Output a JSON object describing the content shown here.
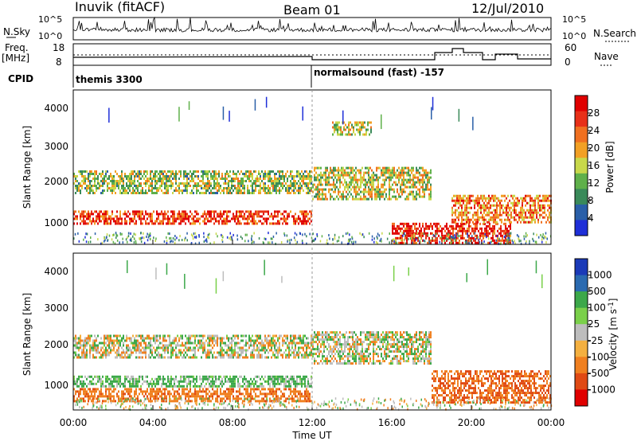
{
  "header": {
    "station": "Inuvik (fitACF)",
    "beam": "Beam 01",
    "date": "12/Jul/2010"
  },
  "left_labels": {
    "nsky": "N.Sky",
    "freq": "Freq.",
    "freq_unit": "[MHz]",
    "cpid": "CPID"
  },
  "right_labels": {
    "nsearch": "N.Search",
    "nave": "Nave"
  },
  "cpid_segments": [
    "themis 3300",
    "normalsound (fast) -157"
  ],
  "nsky_axis": {
    "top": "10^5",
    "bottom": "10^0"
  },
  "freq_axis": {
    "left_ticks": [
      "18",
      "8"
    ],
    "right_ticks": [
      "60",
      "0"
    ]
  },
  "colors": {
    "power": [
      "#1f2fd8",
      "#2a5fa8",
      "#3a8a5a",
      "#5fb04a",
      "#c8d84a",
      "#f2a024",
      "#f07020",
      "#e83018",
      "#e00000"
    ],
    "velocity_neg": "#e03a1a",
    "velocity_pos": "#1a3ab8",
    "ground": "#bdbdbd"
  },
  "chart_data": [
    {
      "type": "heatmap",
      "title": "Power",
      "xlabel": "Time UT",
      "ylabel": "Slant Range [km]",
      "x_ticks": [
        "00:00",
        "04:00",
        "08:00",
        "12:00",
        "16:00",
        "20:00",
        "00:00"
      ],
      "y_ticks": [
        "1000",
        "2000",
        "3000",
        "4000"
      ],
      "xlim": [
        "00:00",
        "24:00"
      ],
      "ylim": [
        180,
        4600
      ],
      "colorbar": {
        "label": "Power [dB]",
        "ticks": [
          "28",
          "24",
          "20",
          "16",
          "12",
          "8",
          "4"
        ]
      },
      "bands": [
        {
          "x": [
            0,
            12
          ],
          "y": [
            750,
            1150
          ],
          "level": 0.85
        },
        {
          "x": [
            0,
            12
          ],
          "y": [
            1650,
            2300
          ],
          "level": 0.45
        },
        {
          "x": [
            12,
            18
          ],
          "y": [
            1500,
            2400
          ],
          "level": 0.5
        },
        {
          "x": [
            16,
            22
          ],
          "y": [
            250,
            800
          ],
          "level": 0.9
        },
        {
          "x": [
            19,
            24
          ],
          "y": [
            800,
            1600
          ],
          "level": 0.7
        },
        {
          "x": [
            13,
            15
          ],
          "y": [
            3300,
            3700
          ],
          "level": 0.5
        }
      ]
    },
    {
      "type": "heatmap",
      "title": "Velocity",
      "xlabel": "Time UT",
      "ylabel": "Slant Range [km]",
      "x_ticks": [
        "00:00",
        "04:00",
        "08:00",
        "12:00",
        "16:00",
        "20:00",
        "00:00"
      ],
      "y_ticks": [
        "1000",
        "2000",
        "3000",
        "4000"
      ],
      "xlim": [
        "00:00",
        "24:00"
      ],
      "ylim": [
        180,
        4600
      ],
      "colorbar": {
        "label": "Velocity [m s^-1]",
        "ticks": [
          "1000",
          "500",
          "100",
          "25",
          "-25",
          "-100",
          "-500",
          "-1000"
        ]
      },
      "bands": [
        {
          "x": [
            0,
            12
          ],
          "y": [
            1650,
            2300
          ],
          "value": 0
        },
        {
          "x": [
            0,
            12
          ],
          "y": [
            850,
            1150
          ],
          "value": 150
        },
        {
          "x": [
            0,
            12
          ],
          "y": [
            400,
            800
          ],
          "value": -300
        },
        {
          "x": [
            12,
            18
          ],
          "y": [
            1500,
            2400
          ],
          "value": 0
        },
        {
          "x": [
            18,
            24
          ],
          "y": [
            400,
            1300
          ],
          "value": -400
        }
      ]
    }
  ]
}
